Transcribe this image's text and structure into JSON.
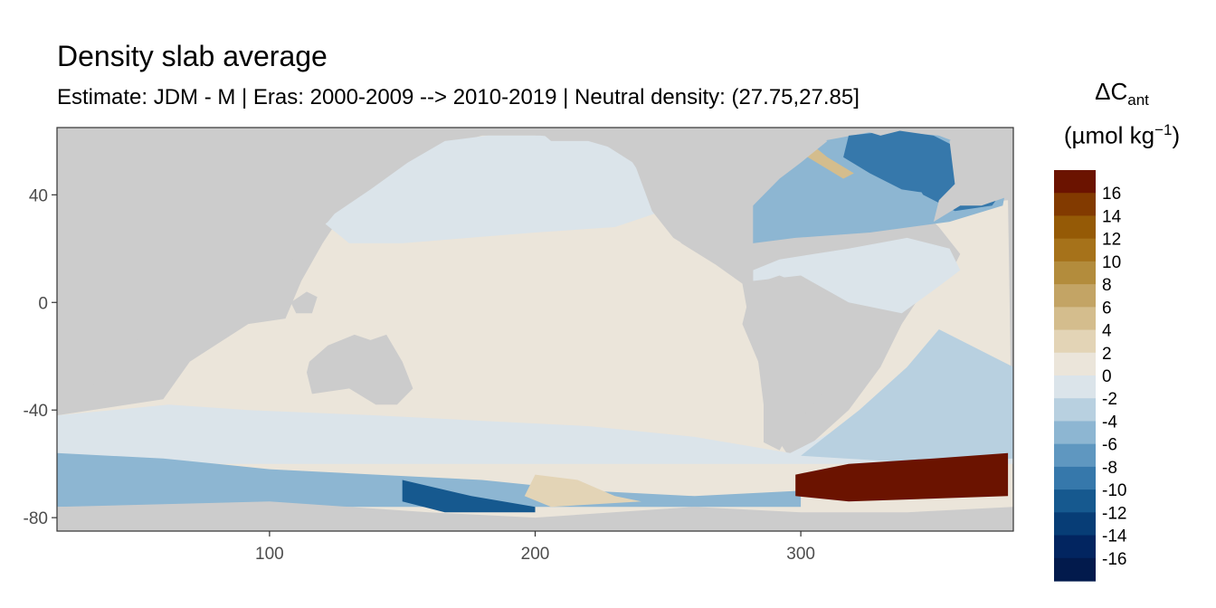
{
  "chart_data": {
    "type": "heatmap",
    "title": "Density slab average",
    "subtitle": "Estimate: JDM - M | Eras: 2000-2009 --> 2010-2019 | Neutral density: (27.75,27.85]",
    "legend": {
      "title_main": "ΔC",
      "title_sub": "ant",
      "unit_main": "(µmol kg",
      "unit_sup": "−1",
      "unit_end": ")",
      "placement": "right",
      "breaks": [
        16,
        14,
        12,
        10,
        8,
        6,
        4,
        2,
        0,
        -2,
        -4,
        -6,
        -8,
        -10,
        -12,
        -14,
        -16
      ],
      "colors": [
        "#6b1300",
        "#823a00",
        "#955a06",
        "#a6721a",
        "#b38c3c",
        "#c3a465",
        "#d4bd8d",
        "#e3d4b6",
        "#ebe5da",
        "#dbe4ea",
        "#b8d0e0",
        "#8db6d2",
        "#5f97c0",
        "#3678ab",
        "#16598f",
        "#073d76",
        "#022560",
        "#021a4c"
      ]
    },
    "xlim": [
      20,
      380
    ],
    "ylim": [
      -85,
      65
    ],
    "x_ticks": [
      100,
      200,
      300
    ],
    "y_ticks": [
      40,
      0,
      -40,
      -80
    ],
    "grid": false,
    "land_color": "#cccccc",
    "ocean_default_color": "#ebe5da"
  }
}
